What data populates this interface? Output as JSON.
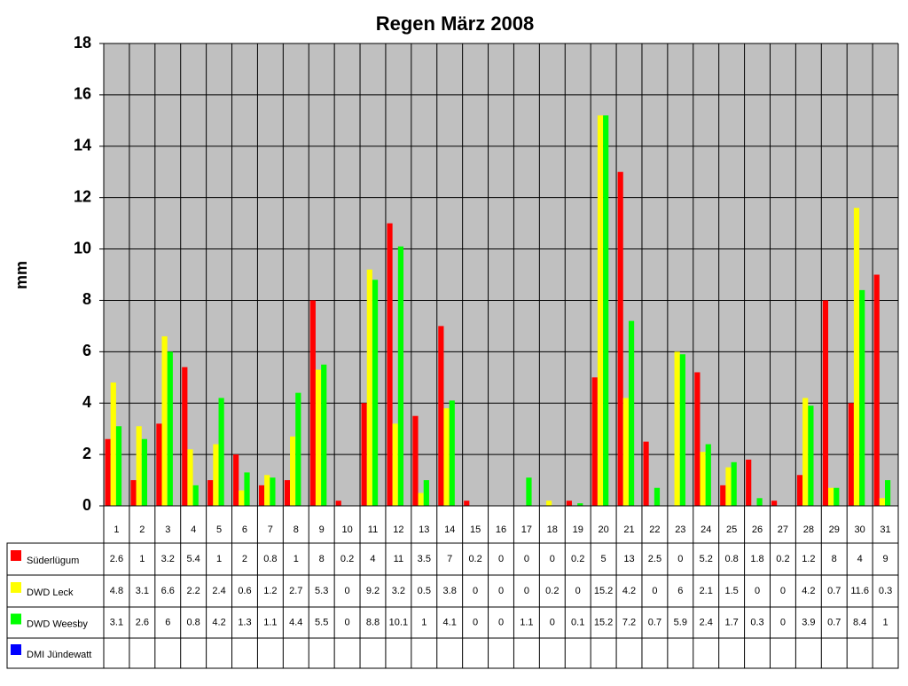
{
  "chart_data": {
    "type": "bar",
    "title": "Regen März 2008",
    "y_label": "mm",
    "categories": [
      "1",
      "2",
      "3",
      "4",
      "5",
      "6",
      "7",
      "8",
      "9",
      "10",
      "11",
      "12",
      "13",
      "14",
      "15",
      "16",
      "17",
      "18",
      "19",
      "20",
      "21",
      "22",
      "23",
      "24",
      "25",
      "26",
      "27",
      "28",
      "29",
      "30",
      "31"
    ],
    "series": [
      {
        "name": "Süderlügum",
        "color": "#ff0000",
        "values": [
          2.6,
          1,
          3.2,
          5.4,
          1,
          2,
          0.8,
          1,
          8,
          0.2,
          4,
          11,
          3.5,
          7,
          0.2,
          0,
          0,
          0,
          0.2,
          5,
          13,
          2.5,
          0,
          5.2,
          0.8,
          1.8,
          0.2,
          1.2,
          8,
          4,
          9
        ]
      },
      {
        "name": "DWD Leck",
        "color": "#ffff00",
        "values": [
          4.8,
          3.1,
          6.6,
          2.2,
          2.4,
          0.6,
          1.2,
          2.7,
          5.3,
          0,
          9.2,
          3.2,
          0.5,
          3.8,
          0,
          0,
          0,
          0.2,
          0,
          15.2,
          4.2,
          0,
          6,
          2.1,
          1.5,
          0,
          0,
          4.2,
          0.7,
          11.6,
          0.3
        ]
      },
      {
        "name": "DWD Weesby",
        "color": "#00ff00",
        "values": [
          3.1,
          2.6,
          6,
          0.8,
          4.2,
          1.3,
          1.1,
          4.4,
          5.5,
          0,
          8.8,
          10.1,
          1,
          4.1,
          0,
          0,
          1.1,
          0,
          0.1,
          15.2,
          7.2,
          0.7,
          5.9,
          2.4,
          1.7,
          0.3,
          0,
          3.9,
          0.7,
          8.4,
          1
        ]
      },
      {
        "name": "DMI Jündewatt",
        "color": "#0000ff",
        "values": [
          null,
          null,
          null,
          null,
          null,
          null,
          null,
          null,
          null,
          null,
          null,
          null,
          null,
          null,
          null,
          null,
          null,
          null,
          null,
          null,
          null,
          null,
          null,
          null,
          null,
          null,
          null,
          null,
          null,
          null,
          null
        ]
      }
    ],
    "ylim": [
      0,
      18
    ],
    "yticks": [
      0,
      2,
      4,
      6,
      8,
      10,
      12,
      14,
      16,
      18
    ],
    "grid": true,
    "plot_background": "#c0c0c0"
  }
}
